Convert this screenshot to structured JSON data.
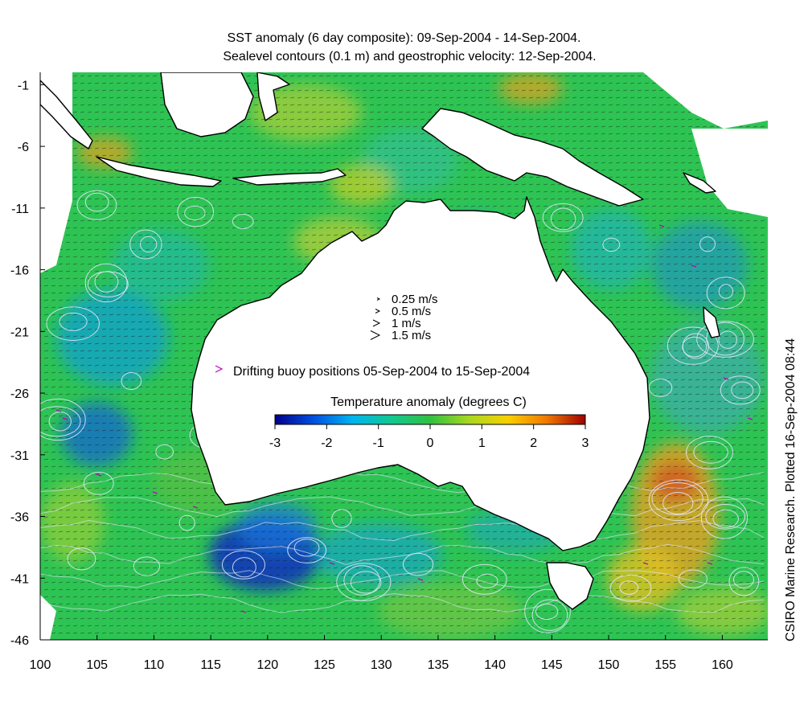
{
  "title_line1": "SST anomaly (6 day composite): 09-Sep-2004 - 14-Sep-2004.",
  "title_line2": "Sealevel contours (0.1 m) and geostrophic velocity: 12-Sep-2004.",
  "credit": "CSIRO Marine Research. Plotted 16-Sep-2004 08:44",
  "map": {
    "lon_range": [
      100,
      164
    ],
    "lat_range": [
      -46,
      0
    ],
    "x_ticks": [
      "100",
      "105",
      "110",
      "115",
      "120",
      "125",
      "130",
      "135",
      "140",
      "145",
      "150",
      "155",
      "160"
    ],
    "y_ticks": [
      "-1",
      "-6",
      "-11",
      "-16",
      "-21",
      "-26",
      "-31",
      "-36",
      "-41",
      "-46"
    ]
  },
  "velocity_legend": [
    "0.25 m/s",
    "0.5 m/s",
    "1 m/s",
    "1.5 m/s"
  ],
  "buoy_legend": "Drifting buoy positions 05-Sep-2004 to 15-Sep-2004",
  "colorbar": {
    "title": "Temperature anomaly (degrees C)",
    "min": -3,
    "max": 3,
    "ticks": [
      "-3",
      "-2",
      "-1",
      "0",
      "1",
      "2",
      "3"
    ],
    "colors": [
      "#00008b",
      "#0050e0",
      "#00b4f0",
      "#10c890",
      "#30c040",
      "#a8d820",
      "#f8d000",
      "#f07800",
      "#a00000"
    ]
  },
  "colors": {
    "ocean_base": "#2ec454",
    "land": "#ffffff",
    "coast": "#000000",
    "contour": "#e8e8ff",
    "buoy": "#c000c0"
  }
}
